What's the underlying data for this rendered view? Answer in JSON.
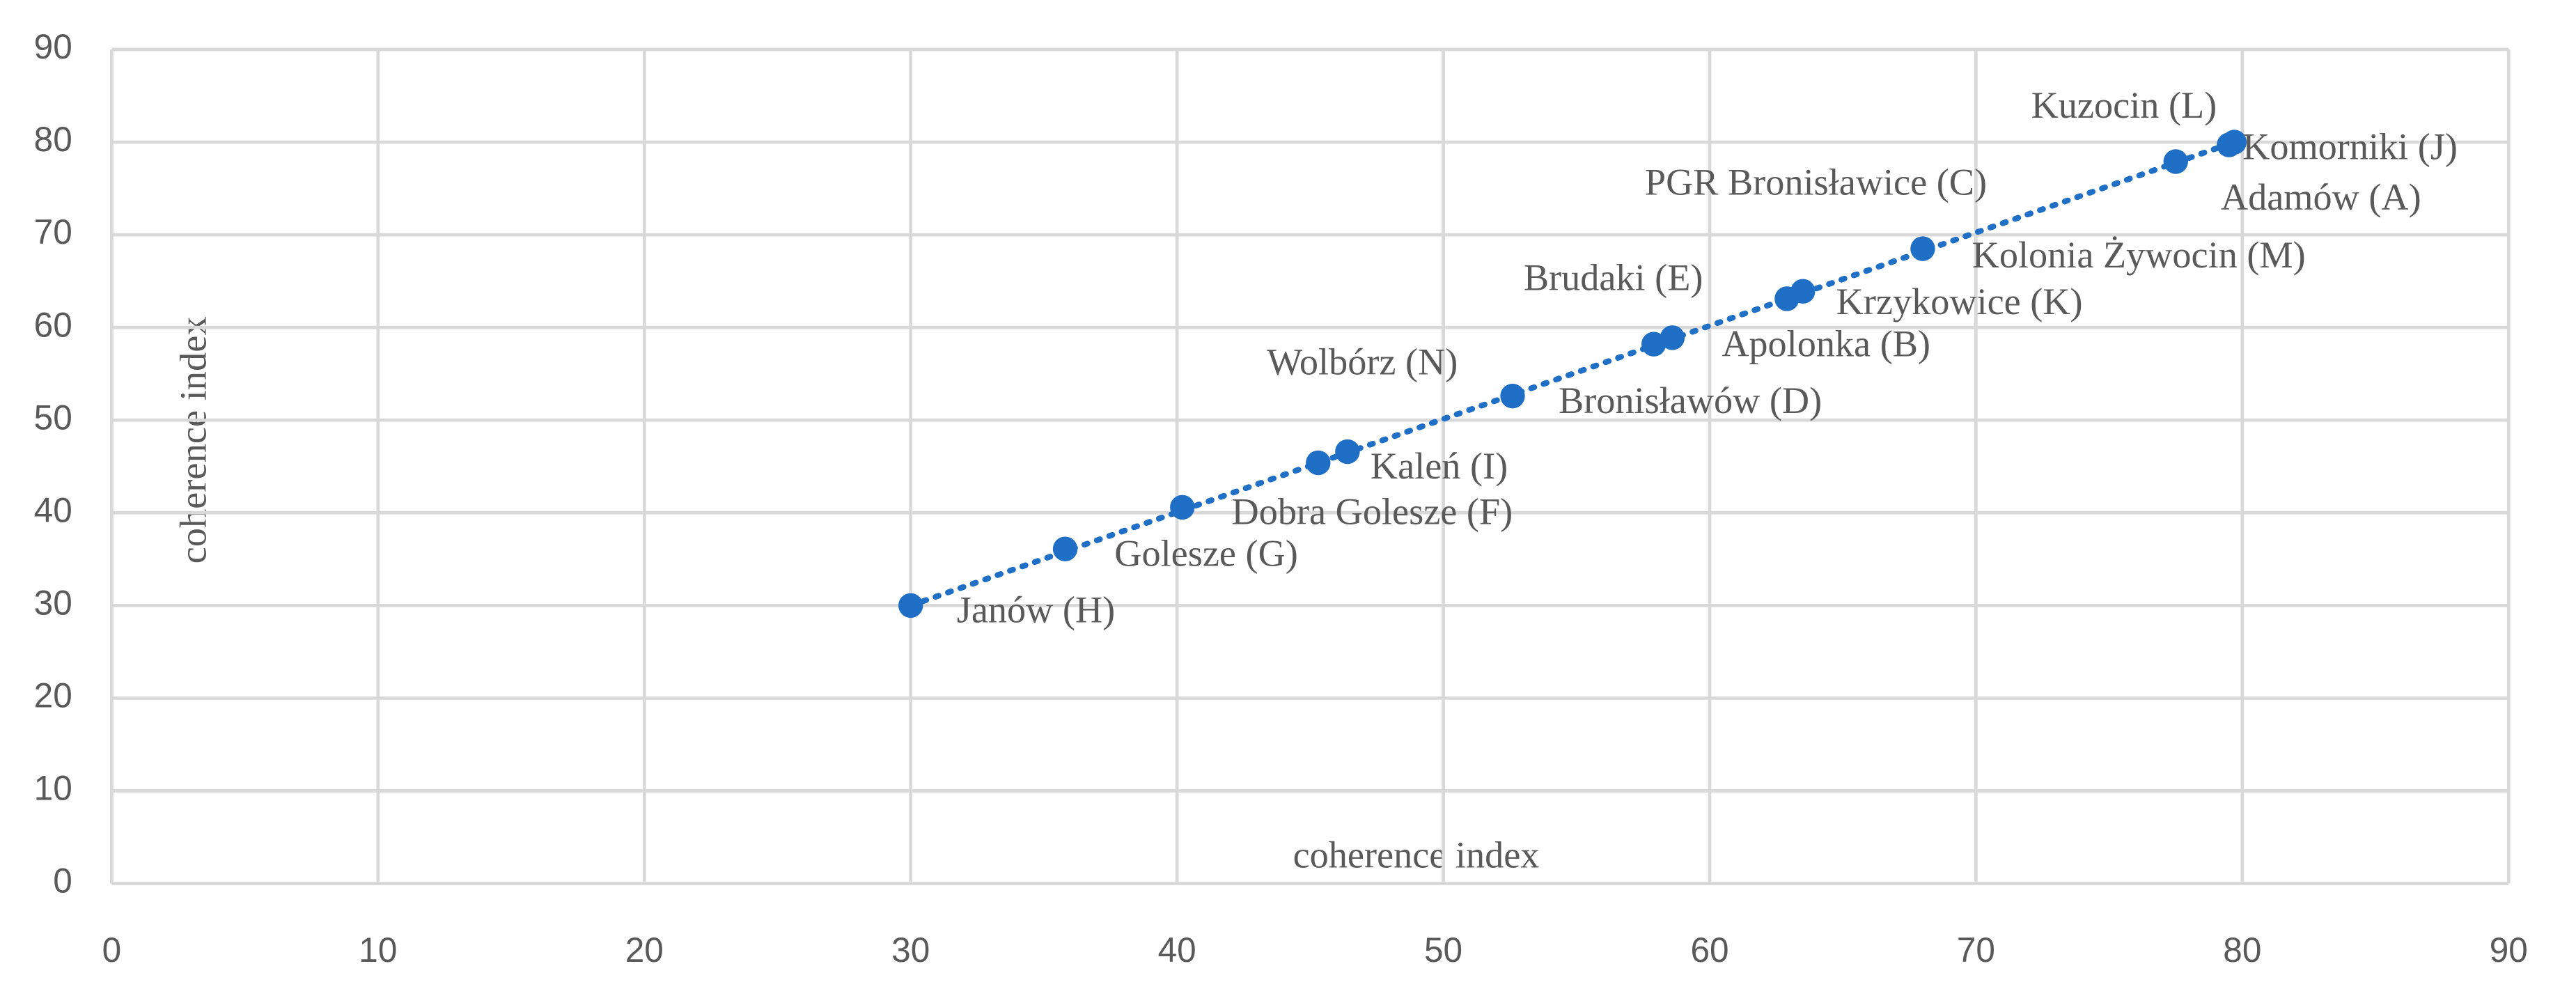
{
  "chart_data": {
    "type": "scatter",
    "x_label": "coherence index",
    "y_label": "coherence index",
    "x": [
      30,
      35.8,
      40.2,
      45.3,
      46.4,
      52.6,
      57.9,
      58.6,
      62.9,
      63.5,
      68,
      77.5,
      79.7,
      79.5
    ],
    "values": [
      30,
      36.1,
      40.6,
      45.4,
      46.6,
      52.6,
      58.2,
      58.9,
      63.1,
      63.9,
      68.5,
      77.9,
      80,
      79.7
    ],
    "point_labels": [
      "Janów (H)",
      "Golesze (G)",
      "Dobra Golesze (F)",
      "Wolbórz (N)",
      "Kaleń (I)",
      "Bronisławów (D)",
      "Brudaki (E)",
      "Apolonka (B)",
      "Krzykowice (K)",
      "PGR Bronisławice (C)",
      "Kolonia Żywocin (M)",
      "Kuzocin (L)",
      "Komorniki (J)",
      "Adamów (A)"
    ],
    "color": "#1f6fc6",
    "trendline": true,
    "xlim": [
      0,
      90
    ],
    "ylim": [
      0,
      90
    ],
    "xticks": [
      0,
      10,
      20,
      30,
      40,
      50,
      60,
      70,
      80,
      90
    ],
    "yticks": [
      0,
      10,
      20,
      30,
      40,
      50,
      60,
      70,
      80,
      90
    ],
    "grid": true
  }
}
